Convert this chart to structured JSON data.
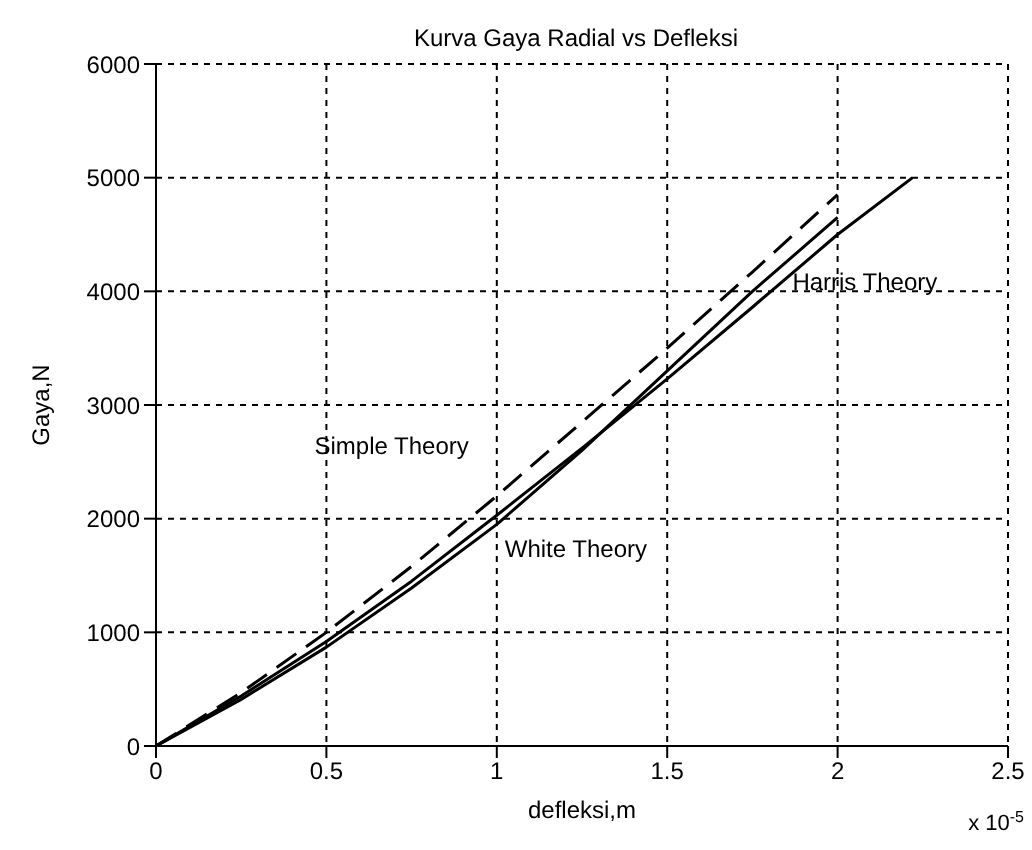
{
  "chart_data": {
    "type": "line",
    "title": "Kurva Gaya Radial vs Defleksi",
    "xlabel": "defleksi,m",
    "ylabel": "Gaya,N",
    "xlim": [
      0,
      2.5
    ],
    "xticks": [
      0,
      0.5,
      1,
      1.5,
      2,
      2.5
    ],
    "ylim": [
      0,
      6000
    ],
    "yticks": [
      0,
      1000,
      2000,
      3000,
      4000,
      5000,
      6000
    ],
    "grid": true,
    "series": [
      {
        "name": "Harris Theory",
        "color": "#000000",
        "line_style": "solid",
        "x": [
          0,
          0.25,
          0.5,
          0.75,
          1,
          1.25,
          1.5,
          1.75,
          2,
          2.22
        ],
        "values": [
          0,
          440,
          920,
          1450,
          2030,
          2620,
          3230,
          3860,
          4500,
          5000
        ]
      },
      {
        "name": "Simple Theory",
        "color": "#000000",
        "line_style": "dashed",
        "x": [
          0,
          0.25,
          0.5,
          0.75,
          1,
          1.25,
          1.5,
          1.75,
          2
        ],
        "values": [
          0,
          470,
          1000,
          1580,
          2200,
          2850,
          3500,
          4170,
          4850
        ]
      },
      {
        "name": "White Theory",
        "color": "#000000",
        "line_style": "solid",
        "x": [
          0,
          0.25,
          0.5,
          0.75,
          1,
          1.25,
          1.5,
          1.75,
          2
        ],
        "values": [
          0,
          410,
          870,
          1390,
          1950,
          2600,
          3300,
          4000,
          4650
        ]
      }
    ],
    "annotations": [
      "x 10$^{-5}$"
    ]
  }
}
